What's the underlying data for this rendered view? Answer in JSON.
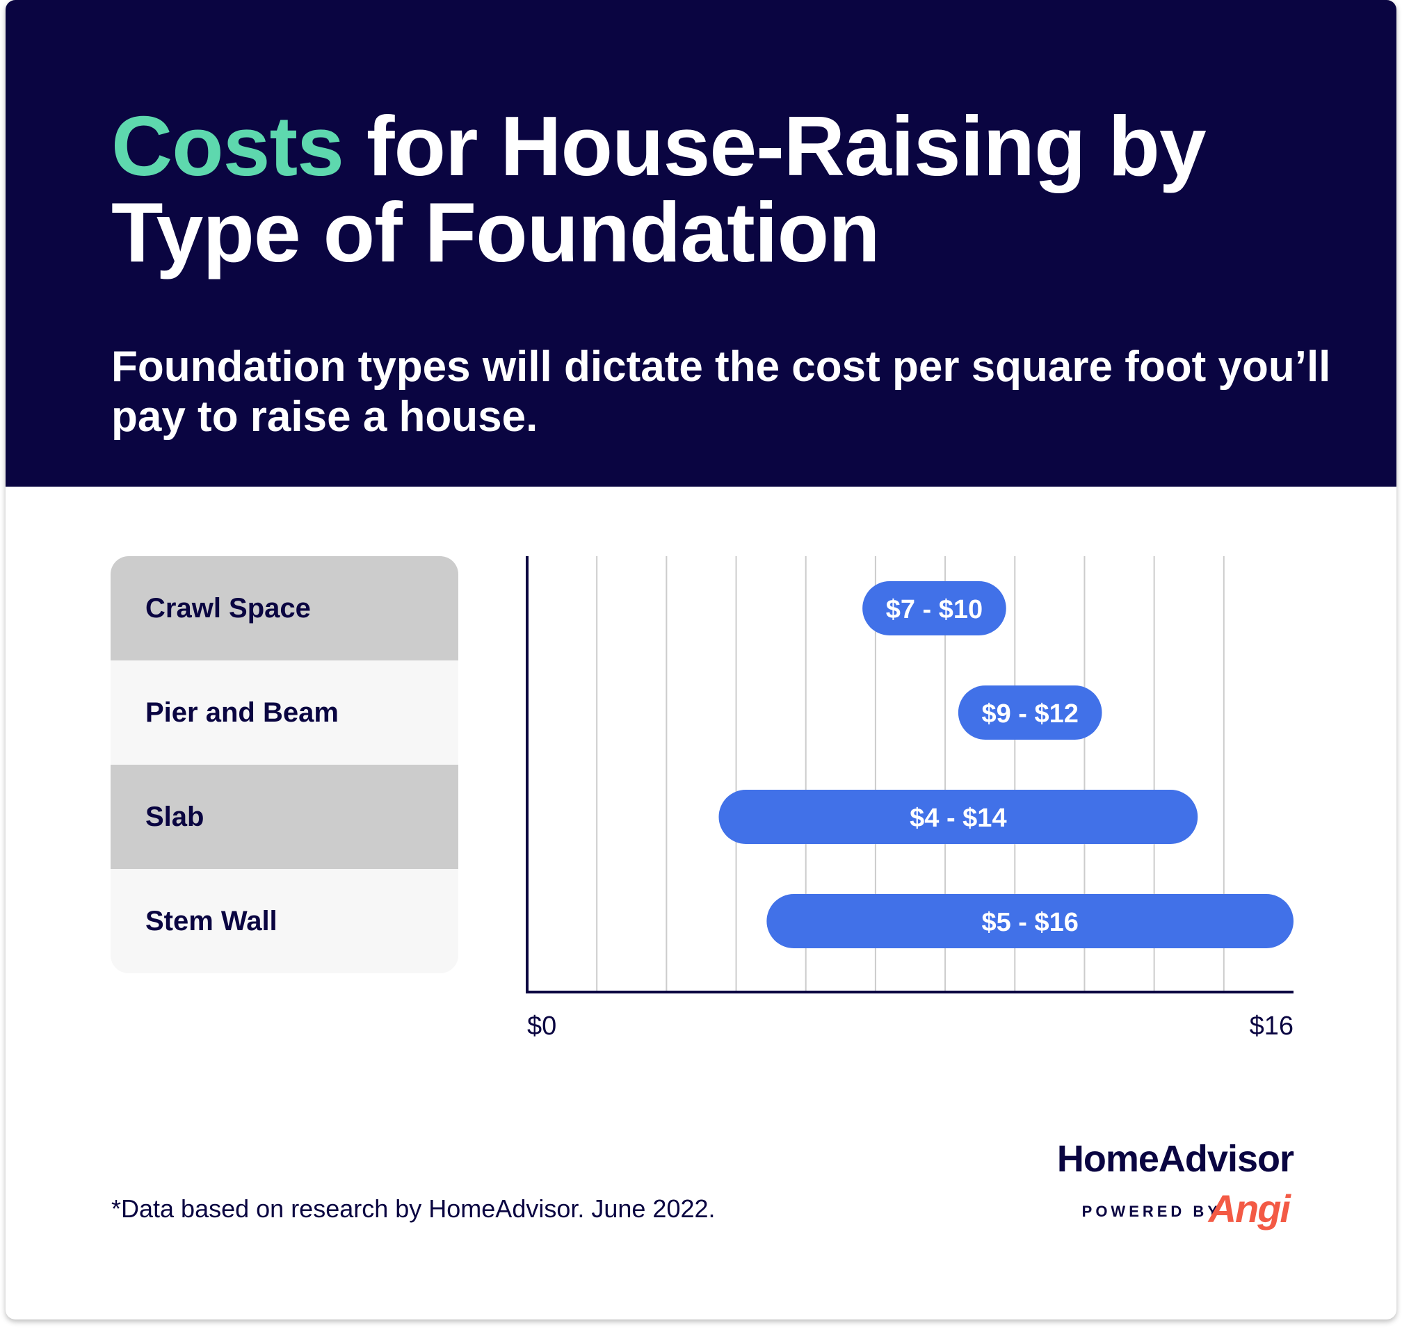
{
  "header": {
    "title_accent": "Costs",
    "title_rest": " for House-Raising by Type of Foundation",
    "subtitle": "Foundation types will dictate the cost per square foot you’ll pay to raise a house."
  },
  "chart_data": {
    "type": "bar",
    "orientation": "horizontal-range",
    "title": "Costs for House-Raising by Type of Foundation",
    "subtitle": "Foundation types will dictate the cost per square foot you’ll pay to raise a house.",
    "categories": [
      "Crawl Space",
      "Pier and Beam",
      "Slab",
      "Stem Wall"
    ],
    "ranges": [
      {
        "category": "Crawl Space",
        "low": 7,
        "high": 10,
        "label": "$7 - $10"
      },
      {
        "category": "Pier and Beam",
        "low": 9,
        "high": 12,
        "label": "$9 - $12"
      },
      {
        "category": "Slab",
        "low": 4,
        "high": 14,
        "label": "$4 - $14"
      },
      {
        "category": "Stem Wall",
        "low": 5,
        "high": 16,
        "label": "$5 - $16"
      }
    ],
    "xlim": [
      0,
      16
    ],
    "xtick_labels": [
      "$0",
      "$16"
    ],
    "grid": true,
    "xlabel": "",
    "ylabel": ""
  },
  "colors": {
    "header_bg": "#0a0541",
    "accent": "#5ed8ae",
    "bar": "#4171e8",
    "row_dark": "#cccccc",
    "row_light": "#f7f7f7",
    "gridline": "#cccccc",
    "axis": "#0a0541",
    "brand_angi": "#f35a45"
  },
  "footnote": "*Data based on research by HomeAdvisor. June 2022.",
  "brand": {
    "name": "HomeAdvisor",
    "powered_by": "POWERED BY",
    "angi": "Angi"
  }
}
